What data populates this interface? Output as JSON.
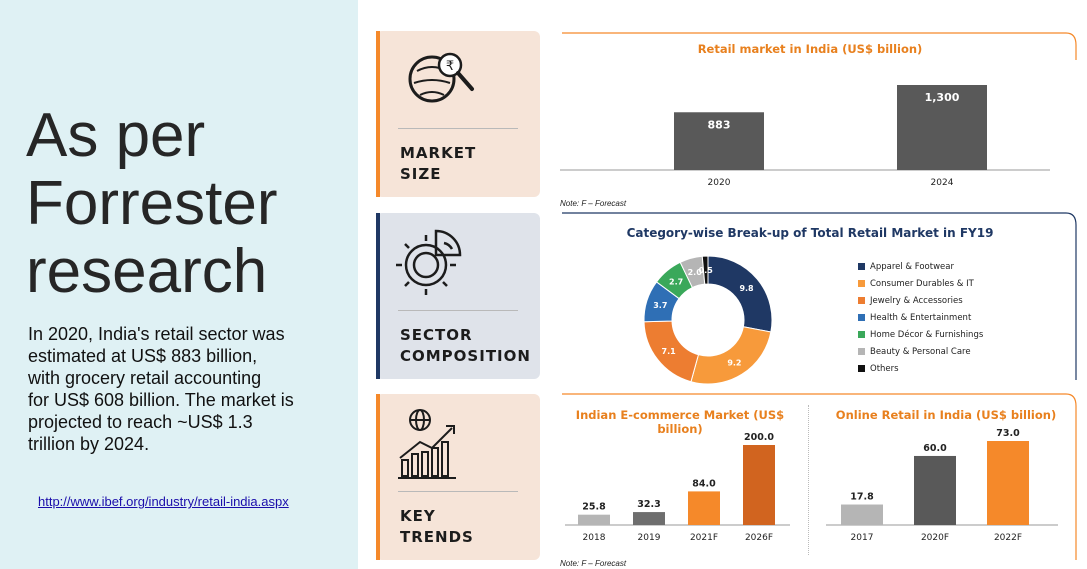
{
  "headline": {
    "line1": "As per",
    "line2": "Forrester",
    "line3": "research"
  },
  "body": {
    "line1": "In 2020, India's retail sector was",
    "line2": "estimated at US$ 883 billion,",
    "line3": "with grocery retail accounting",
    "line4": "for US$ 608 billion. The market is",
    "line5": "projected to reach ~US$ 1.3",
    "line6": "trillion by 2024."
  },
  "source_link": "http://www.ibef.org/industry/retail-india.aspx",
  "cards": [
    {
      "line1": "MARKET",
      "line2": "SIZE",
      "accent": "#f5892a",
      "bg": "#f6e4d8",
      "icon": "rupee-magnifier-icon"
    },
    {
      "line1": "SECTOR",
      "line2": "COMPOSITION",
      "accent": "#1f3864",
      "bg": "#dfe3ea",
      "icon": "gear-pie-icon"
    },
    {
      "line1": "KEY",
      "line2": "TRENDS",
      "accent": "#f5892a",
      "bg": "#f6e4d8",
      "icon": "globe-bar-chart-icon"
    }
  ],
  "notes": {
    "forecast1": "Note: F – Forecast",
    "forecast2": "Note: F – Forecast"
  },
  "chart_data": [
    {
      "type": "bar",
      "title": "Retail market in India (US$ billion)",
      "categories": [
        "2020",
        "2024"
      ],
      "values": [
        883,
        1300
      ],
      "labels": [
        "883",
        "1,300"
      ],
      "color": "#595959",
      "ylim": [
        0,
        1300
      ]
    },
    {
      "type": "pie",
      "title": "Category-wise Break-up of Total Retail Market in FY19",
      "labels": [
        "Apparel & Footwear",
        "Consumer Durables & IT",
        "Jewelry & Accessories",
        "Health & Entertainment",
        "Home Décor & Furnishings",
        "Beauty & Personal Care",
        "Others"
      ],
      "values": [
        9.8,
        9.2,
        7.1,
        3.7,
        2.7,
        2.0,
        0.5
      ],
      "colors": [
        "#1f3864",
        "#f79a3b",
        "#ed7d31",
        "#2f6fb5",
        "#3aa85a",
        "#b5b5b5",
        "#111111"
      ],
      "donut": true
    },
    {
      "type": "bar",
      "title": "Indian E-commerce Market (US$ billion)",
      "categories": [
        "2018",
        "2019",
        "2021F",
        "2026F"
      ],
      "values": [
        25.8,
        32.3,
        84.0,
        200.0
      ],
      "labels": [
        "25.8",
        "32.3",
        "84.0",
        "200.0"
      ],
      "colors": [
        "#b5b5b5",
        "#6e6e6e",
        "#f5892a",
        "#d1641f"
      ],
      "ylim": [
        0,
        200
      ]
    },
    {
      "type": "bar",
      "title": "Online Retail in India (US$ billion)",
      "categories": [
        "2017",
        "2020F",
        "2022F"
      ],
      "values": [
        17.8,
        60.0,
        73.0
      ],
      "labels": [
        "17.8",
        "60.0",
        "73.0"
      ],
      "colors": [
        "#b5b5b5",
        "#595959",
        "#f5892a"
      ],
      "ylim": [
        0,
        73
      ]
    }
  ]
}
